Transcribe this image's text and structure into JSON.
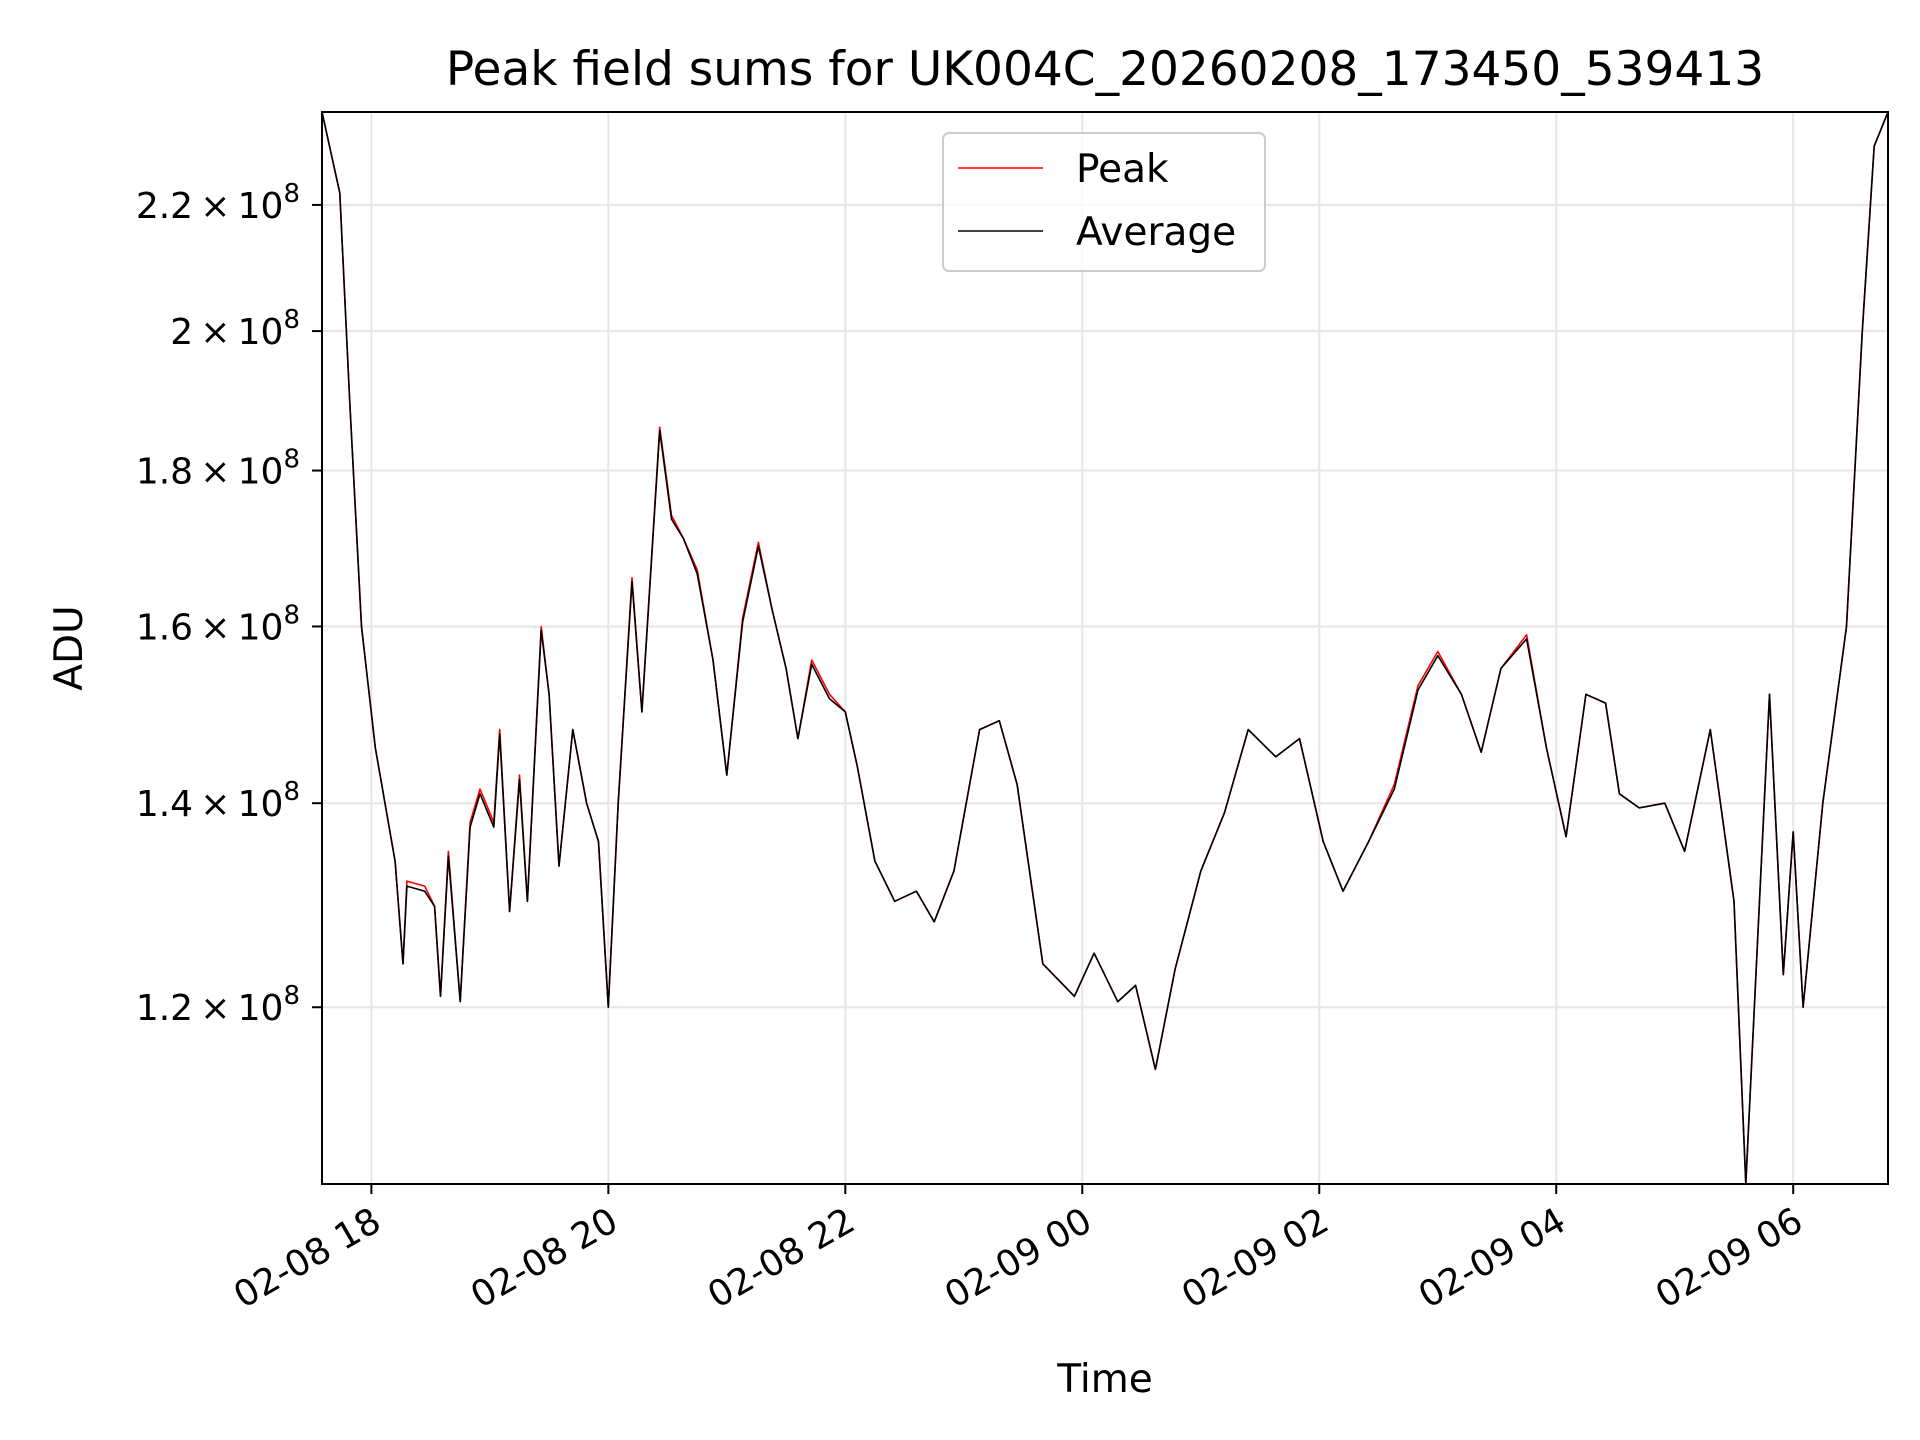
{
  "chart_data": {
    "type": "line",
    "title": "Peak field sums for UK004C_20260208_173450_539413",
    "xlabel": "Time",
    "ylabel": "ADU",
    "x_ticks": [
      "02-08 18",
      "02-08 20",
      "02-08 22",
      "02-09 00",
      "02-09 02",
      "02-09 04",
      "02-09 06"
    ],
    "y_ticks": [
      {
        "value": 120000000,
        "mantissa": "1.2",
        "exponent": "8"
      },
      {
        "value": 140000000,
        "mantissa": "1.4",
        "exponent": "8"
      },
      {
        "value": 160000000,
        "mantissa": "1.6",
        "exponent": "8"
      },
      {
        "value": 180000000,
        "mantissa": "1.8",
        "exponent": "8"
      },
      {
        "value": 200000000,
        "mantissa": "2",
        "exponent": "8"
      },
      {
        "value": 220000000,
        "mantissa": "2.2",
        "exponent": "8"
      }
    ],
    "y_scale": "log",
    "xlim": [
      "2026-02-08 17:35",
      "2026-02-09 06:48"
    ],
    "ylim": [
      105000000,
      236000000
    ],
    "grid": true,
    "legend_position": "upper center",
    "series": [
      {
        "name": "Peak",
        "color": "#ff0000",
        "points": [
          [
            "2026-02-08 17:35",
            236000000
          ],
          [
            "2026-02-08 17:44",
            222000000
          ],
          [
            "2026-02-08 17:49",
            190000000
          ],
          [
            "2026-02-08 17:55",
            160000000
          ],
          [
            "2026-02-08 18:02",
            146000000
          ],
          [
            "2026-02-08 18:12",
            134000000
          ],
          [
            "2026-02-08 18:16",
            124000000
          ],
          [
            "2026-02-08 18:18",
            132000000
          ],
          [
            "2026-02-08 18:27",
            131500000
          ],
          [
            "2026-02-08 18:32",
            129500000
          ],
          [
            "2026-02-08 18:35",
            121000000
          ],
          [
            "2026-02-08 18:39",
            135000000
          ],
          [
            "2026-02-08 18:45",
            120500000
          ],
          [
            "2026-02-08 18:50",
            138000000
          ],
          [
            "2026-02-08 18:55",
            141500000
          ],
          [
            "2026-02-08 19:02",
            138000000
          ],
          [
            "2026-02-08 19:05",
            148000000
          ],
          [
            "2026-02-08 19:10",
            129000000
          ],
          [
            "2026-02-08 19:15",
            143000000
          ],
          [
            "2026-02-08 19:19",
            130000000
          ],
          [
            "2026-02-08 19:26",
            160000000
          ],
          [
            "2026-02-08 19:30",
            152000000
          ],
          [
            "2026-02-08 19:35",
            133500000
          ],
          [
            "2026-02-08 19:42",
            148000000
          ],
          [
            "2026-02-08 19:49",
            140000000
          ],
          [
            "2026-02-08 19:55",
            136000000
          ],
          [
            "2026-02-08 20:00",
            120000000
          ],
          [
            "2026-02-08 20:05",
            140000000
          ],
          [
            "2026-02-08 20:12",
            166000000
          ],
          [
            "2026-02-08 20:17",
            150000000
          ],
          [
            "2026-02-08 20:26",
            186000000
          ],
          [
            "2026-02-08 20:32",
            174000000
          ],
          [
            "2026-02-08 20:38",
            171000000
          ],
          [
            "2026-02-08 20:45",
            167000000
          ],
          [
            "2026-02-08 20:53",
            156000000
          ],
          [
            "2026-02-08 21:00",
            143000000
          ],
          [
            "2026-02-08 21:08",
            161000000
          ],
          [
            "2026-02-08 21:16",
            170500000
          ],
          [
            "2026-02-08 21:23",
            162000000
          ],
          [
            "2026-02-08 21:30",
            155000000
          ],
          [
            "2026-02-08 21:36",
            147000000
          ],
          [
            "2026-02-08 21:43",
            156000000
          ],
          [
            "2026-02-08 21:52",
            152000000
          ],
          [
            "2026-02-08 22:00",
            150000000
          ],
          [
            "2026-02-08 22:06",
            144000000
          ],
          [
            "2026-02-08 22:15",
            134000000
          ],
          [
            "2026-02-08 22:25",
            130000000
          ],
          [
            "2026-02-08 22:36",
            131000000
          ],
          [
            "2026-02-08 22:45",
            128000000
          ],
          [
            "2026-02-08 22:55",
            133000000
          ],
          [
            "2026-02-08 23:08",
            148000000
          ],
          [
            "2026-02-08 23:18",
            149000000
          ],
          [
            "2026-02-08 23:27",
            142000000
          ],
          [
            "2026-02-08 23:40",
            124000000
          ],
          [
            "2026-02-08 23:56",
            121000000
          ],
          [
            "2026-02-09 00:06",
            125000000
          ],
          [
            "2026-02-09 00:18",
            120500000
          ],
          [
            "2026-02-09 00:27",
            122000000
          ],
          [
            "2026-02-09 00:37",
            114500000
          ],
          [
            "2026-02-09 00:47",
            123500000
          ],
          [
            "2026-02-09 01:00",
            133000000
          ],
          [
            "2026-02-09 01:12",
            139000000
          ],
          [
            "2026-02-09 01:24",
            148000000
          ],
          [
            "2026-02-09 01:38",
            145000000
          ],
          [
            "2026-02-09 01:50",
            147000000
          ],
          [
            "2026-02-09 02:02",
            136000000
          ],
          [
            "2026-02-09 02:12",
            131000000
          ],
          [
            "2026-02-09 02:25",
            136000000
          ],
          [
            "2026-02-09 02:38",
            142000000
          ],
          [
            "2026-02-09 02:50",
            153000000
          ],
          [
            "2026-02-09 03:00",
            157000000
          ],
          [
            "2026-02-09 03:12",
            152000000
          ],
          [
            "2026-02-09 03:22",
            145500000
          ],
          [
            "2026-02-09 03:32",
            155000000
          ],
          [
            "2026-02-09 03:45",
            159000000
          ],
          [
            "2026-02-09 03:55",
            146000000
          ],
          [
            "2026-02-09 04:05",
            136500000
          ],
          [
            "2026-02-09 04:15",
            152000000
          ],
          [
            "2026-02-09 04:25",
            151000000
          ],
          [
            "2026-02-09 04:32",
            141000000
          ],
          [
            "2026-02-09 04:42",
            139500000
          ],
          [
            "2026-02-09 04:55",
            140000000
          ],
          [
            "2026-02-09 05:05",
            135000000
          ],
          [
            "2026-02-09 05:18",
            148000000
          ],
          [
            "2026-02-09 05:30",
            130000000
          ],
          [
            "2026-02-09 05:36",
            105000000
          ],
          [
            "2026-02-09 05:48",
            152000000
          ],
          [
            "2026-02-09 05:55",
            123000000
          ],
          [
            "2026-02-09 06:00",
            137000000
          ],
          [
            "2026-02-09 06:05",
            120000000
          ],
          [
            "2026-02-09 06:15",
            140000000
          ],
          [
            "2026-02-09 06:27",
            160000000
          ],
          [
            "2026-02-09 06:35",
            200000000
          ],
          [
            "2026-02-09 06:41",
            230000000
          ],
          [
            "2026-02-09 06:48",
            236000000
          ]
        ]
      },
      {
        "name": "Average",
        "color": "#000000",
        "points": [
          [
            "2026-02-08 17:35",
            236000000
          ],
          [
            "2026-02-08 17:44",
            222000000
          ],
          [
            "2026-02-08 17:49",
            190000000
          ],
          [
            "2026-02-08 17:55",
            160000000
          ],
          [
            "2026-02-08 18:02",
            146000000
          ],
          [
            "2026-02-08 18:12",
            134000000
          ],
          [
            "2026-02-08 18:16",
            124000000
          ],
          [
            "2026-02-08 18:18",
            131500000
          ],
          [
            "2026-02-08 18:27",
            131000000
          ],
          [
            "2026-02-08 18:32",
            129500000
          ],
          [
            "2026-02-08 18:35",
            121000000
          ],
          [
            "2026-02-08 18:39",
            134500000
          ],
          [
            "2026-02-08 18:45",
            120500000
          ],
          [
            "2026-02-08 18:50",
            137500000
          ],
          [
            "2026-02-08 18:55",
            141000000
          ],
          [
            "2026-02-08 19:02",
            137500000
          ],
          [
            "2026-02-08 19:05",
            147500000
          ],
          [
            "2026-02-08 19:10",
            129000000
          ],
          [
            "2026-02-08 19:15",
            142500000
          ],
          [
            "2026-02-08 19:19",
            130000000
          ],
          [
            "2026-02-08 19:26",
            159500000
          ],
          [
            "2026-02-08 19:30",
            152000000
          ],
          [
            "2026-02-08 19:35",
            133500000
          ],
          [
            "2026-02-08 19:42",
            148000000
          ],
          [
            "2026-02-08 19:49",
            140000000
          ],
          [
            "2026-02-08 19:55",
            136000000
          ],
          [
            "2026-02-08 20:00",
            120000000
          ],
          [
            "2026-02-08 20:05",
            140000000
          ],
          [
            "2026-02-08 20:12",
            165500000
          ],
          [
            "2026-02-08 20:17",
            150000000
          ],
          [
            "2026-02-08 20:26",
            185500000
          ],
          [
            "2026-02-08 20:32",
            173500000
          ],
          [
            "2026-02-08 20:38",
            171000000
          ],
          [
            "2026-02-08 20:45",
            166500000
          ],
          [
            "2026-02-08 20:53",
            156000000
          ],
          [
            "2026-02-08 21:00",
            143000000
          ],
          [
            "2026-02-08 21:08",
            160500000
          ],
          [
            "2026-02-08 21:16",
            170000000
          ],
          [
            "2026-02-08 21:23",
            162000000
          ],
          [
            "2026-02-08 21:30",
            155000000
          ],
          [
            "2026-02-08 21:36",
            147000000
          ],
          [
            "2026-02-08 21:43",
            155500000
          ],
          [
            "2026-02-08 21:52",
            151500000
          ],
          [
            "2026-02-08 22:00",
            150000000
          ],
          [
            "2026-02-08 22:06",
            144000000
          ],
          [
            "2026-02-08 22:15",
            134000000
          ],
          [
            "2026-02-08 22:25",
            130000000
          ],
          [
            "2026-02-08 22:36",
            131000000
          ],
          [
            "2026-02-08 22:45",
            128000000
          ],
          [
            "2026-02-08 22:55",
            133000000
          ],
          [
            "2026-02-08 23:08",
            148000000
          ],
          [
            "2026-02-08 23:18",
            149000000
          ],
          [
            "2026-02-08 23:27",
            142000000
          ],
          [
            "2026-02-08 23:40",
            124000000
          ],
          [
            "2026-02-08 23:56",
            121000000
          ],
          [
            "2026-02-09 00:06",
            125000000
          ],
          [
            "2026-02-09 00:18",
            120500000
          ],
          [
            "2026-02-09 00:27",
            122000000
          ],
          [
            "2026-02-09 00:37",
            114500000
          ],
          [
            "2026-02-09 00:47",
            123500000
          ],
          [
            "2026-02-09 01:00",
            133000000
          ],
          [
            "2026-02-09 01:12",
            139000000
          ],
          [
            "2026-02-09 01:24",
            148000000
          ],
          [
            "2026-02-09 01:38",
            145000000
          ],
          [
            "2026-02-09 01:50",
            147000000
          ],
          [
            "2026-02-09 02:02",
            136000000
          ],
          [
            "2026-02-09 02:12",
            131000000
          ],
          [
            "2026-02-09 02:25",
            136000000
          ],
          [
            "2026-02-09 02:38",
            141500000
          ],
          [
            "2026-02-09 02:50",
            152500000
          ],
          [
            "2026-02-09 03:00",
            156500000
          ],
          [
            "2026-02-09 03:12",
            152000000
          ],
          [
            "2026-02-09 03:22",
            145500000
          ],
          [
            "2026-02-09 03:32",
            155000000
          ],
          [
            "2026-02-09 03:45",
            158500000
          ],
          [
            "2026-02-09 03:55",
            146000000
          ],
          [
            "2026-02-09 04:05",
            136500000
          ],
          [
            "2026-02-09 04:15",
            152000000
          ],
          [
            "2026-02-09 04:25",
            151000000
          ],
          [
            "2026-02-09 04:32",
            141000000
          ],
          [
            "2026-02-09 04:42",
            139500000
          ],
          [
            "2026-02-09 04:55",
            140000000
          ],
          [
            "2026-02-09 05:05",
            135000000
          ],
          [
            "2026-02-09 05:18",
            148000000
          ],
          [
            "2026-02-09 05:30",
            130000000
          ],
          [
            "2026-02-09 05:36",
            105000000
          ],
          [
            "2026-02-09 05:48",
            152000000
          ],
          [
            "2026-02-09 05:55",
            123000000
          ],
          [
            "2026-02-09 06:00",
            137000000
          ],
          [
            "2026-02-09 06:05",
            120000000
          ],
          [
            "2026-02-09 06:15",
            140000000
          ],
          [
            "2026-02-09 06:27",
            160000000
          ],
          [
            "2026-02-09 06:35",
            200000000
          ],
          [
            "2026-02-09 06:41",
            230000000
          ],
          [
            "2026-02-09 06:48",
            236000000
          ]
        ]
      }
    ]
  },
  "colors": {
    "peak_line": "#ff0000",
    "average_line": "#000000",
    "grid": "#e6e6e6",
    "axes": "#000000",
    "background": "#ffffff"
  }
}
